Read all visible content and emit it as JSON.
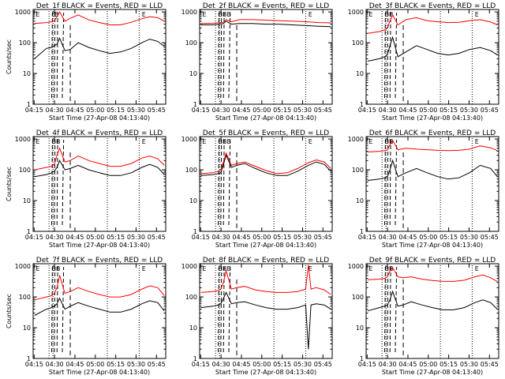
{
  "figure": {
    "background": "#ffffff",
    "events_color": "#000000",
    "lld_color": "#ff0000"
  },
  "chart_data": [
    {
      "type": "line",
      "title": "Det_1f BLACK = Events, RED = LLD",
      "xlabel": "Start Time (27-Apr-08 04:13:40)",
      "ylabel": "Counts/sec",
      "x_tick_labels": [
        "04:15",
        "04:30",
        "04:45",
        "05:00",
        "05:15",
        "05:30",
        "05:45"
      ],
      "y_tick_labels": [
        "1",
        "10",
        "100",
        "1000"
      ],
      "yscale": "log",
      "ylim": [
        1,
        1200
      ],
      "xlim_minutes_after_start": [
        0,
        100
      ],
      "markers": [
        "E",
        "B",
        "B",
        "E"
      ],
      "series": [
        {
          "color": "#000000",
          "x": [
            1,
            10,
            14,
            16,
            18,
            20,
            24,
            28,
            34,
            42,
            50,
            58,
            66,
            74,
            82,
            88,
            94,
            99
          ],
          "y": [
            30,
            65,
            70,
            80,
            90,
            140,
            55,
            60,
            100,
            70,
            55,
            45,
            50,
            65,
            100,
            130,
            110,
            75
          ]
        },
        {
          "color": "#ff0000",
          "x": [
            1,
            10,
            14,
            16,
            18,
            20,
            24,
            28,
            34,
            42,
            50,
            58,
            66,
            74,
            82,
            88,
            94,
            99
          ],
          "y": [
            420,
            450,
            480,
            520,
            700,
            1000,
            500,
            620,
            800,
            550,
            450,
            380,
            380,
            460,
            600,
            700,
            650,
            500
          ]
        }
      ]
    },
    {
      "type": "line",
      "title": "Det_2f BLACK = Events, RED = LLD",
      "xlabel": "Start Time (27-Apr-08 04:13:40)",
      "ylabel": "",
      "x_tick_labels": [
        "04:15",
        "04:30",
        "04:45",
        "05:00",
        "05:15",
        "05:30",
        "05:45"
      ],
      "y_tick_labels": [
        "1",
        "10",
        "100",
        "1000"
      ],
      "yscale": "log",
      "ylim": [
        1,
        1200
      ],
      "xlim_minutes_after_start": [
        0,
        100
      ],
      "markers": [
        "E",
        "BBB",
        "E"
      ],
      "series": [
        {
          "color": "#000000",
          "x": [
            1,
            10,
            18,
            20,
            24,
            30,
            40,
            50,
            60,
            70,
            80,
            90,
            99
          ],
          "y": [
            380,
            380,
            420,
            500,
            400,
            420,
            420,
            400,
            400,
            380,
            360,
            340,
            330
          ]
        },
        {
          "color": "#ff0000",
          "x": [
            1,
            10,
            18,
            20,
            24,
            30,
            40,
            50,
            60,
            70,
            80,
            90,
            99
          ],
          "y": [
            420,
            430,
            460,
            560,
            480,
            560,
            560,
            540,
            520,
            500,
            480,
            450,
            440
          ]
        }
      ]
    },
    {
      "type": "line",
      "title": "Det_3f BLACK = Events, RED = LLD",
      "xlabel": "Start Time (27-Apr-08 04:13:40)",
      "ylabel": "",
      "x_tick_labels": [
        "04:15",
        "04:30",
        "04:45",
        "05:00",
        "05:15",
        "05:30",
        "05:45"
      ],
      "y_tick_labels": [
        "1",
        "10",
        "100",
        "1000"
      ],
      "yscale": "log",
      "ylim": [
        1,
        1200
      ],
      "xlim_minutes_after_start": [
        0,
        100
      ],
      "markers": [
        "E",
        "BB",
        "E"
      ],
      "series": [
        {
          "color": "#000000",
          "x": [
            1,
            10,
            14,
            16,
            18,
            20,
            24,
            30,
            38,
            46,
            54,
            62,
            70,
            78,
            86,
            94,
            99
          ],
          "y": [
            25,
            30,
            35,
            40,
            80,
            150,
            35,
            50,
            80,
            60,
            45,
            40,
            45,
            60,
            70,
            55,
            40
          ]
        },
        {
          "color": "#ff0000",
          "x": [
            1,
            10,
            14,
            16,
            18,
            20,
            24,
            30,
            38,
            46,
            54,
            62,
            70,
            78,
            86,
            94,
            99
          ],
          "y": [
            200,
            230,
            260,
            300,
            500,
            800,
            380,
            560,
            650,
            520,
            480,
            450,
            460,
            520,
            560,
            470,
            380
          ]
        }
      ]
    },
    {
      "type": "line",
      "title": "Det_4f BLACK = Events, RED = LLD",
      "xlabel": "Start Time (27-Apr-08 04:13:40)",
      "ylabel": "Counts/sec",
      "x_tick_labels": [
        "04:15",
        "04:30",
        "04:45",
        "05:00",
        "05:15",
        "05:30",
        "05:45"
      ],
      "y_tick_labels": [
        "1",
        "10",
        "100",
        "1000"
      ],
      "yscale": "log",
      "ylim": [
        1,
        1200
      ],
      "xlim_minutes_after_start": [
        0,
        100
      ],
      "markers": [
        "E",
        "BB",
        "E"
      ],
      "series": [
        {
          "color": "#000000",
          "x": [
            1,
            10,
            14,
            16,
            18,
            20,
            24,
            28,
            34,
            42,
            50,
            58,
            66,
            74,
            82,
            88,
            94,
            99
          ],
          "y": [
            60,
            70,
            80,
            90,
            120,
            200,
            100,
            110,
            140,
            100,
            80,
            65,
            65,
            80,
            120,
            150,
            120,
            70
          ]
        },
        {
          "color": "#ff0000",
          "x": [
            1,
            10,
            14,
            16,
            18,
            20,
            24,
            28,
            34,
            42,
            50,
            58,
            66,
            74,
            82,
            88,
            94,
            99
          ],
          "y": [
            100,
            120,
            130,
            150,
            300,
            500,
            180,
            200,
            280,
            200,
            160,
            130,
            130,
            160,
            240,
            280,
            230,
            140
          ]
        }
      ]
    },
    {
      "type": "line",
      "title": "Det_5f BLACK = Events, RED = LLD",
      "xlabel": "Start Time (27-Apr-08 04:13:40)",
      "ylabel": "",
      "x_tick_labels": [
        "04:15",
        "04:30",
        "04:45",
        "05:00",
        "05:15",
        "05:30",
        "05:45"
      ],
      "y_tick_labels": [
        "1",
        "10",
        "100",
        "1000"
      ],
      "yscale": "log",
      "ylim": [
        1,
        1200
      ],
      "xlim_minutes_after_start": [
        0,
        100
      ],
      "markers": [
        "E",
        "BBB",
        "E"
      ],
      "series": [
        {
          "color": "#000000",
          "x": [
            1,
            10,
            14,
            16,
            18,
            20,
            24,
            28,
            34,
            42,
            50,
            58,
            66,
            74,
            82,
            88,
            94,
            99
          ],
          "y": [
            65,
            70,
            75,
            80,
            150,
            300,
            120,
            140,
            160,
            110,
            80,
            65,
            65,
            90,
            140,
            180,
            150,
            90
          ]
        },
        {
          "color": "#ff0000",
          "x": [
            1,
            10,
            14,
            16,
            18,
            20,
            24,
            28,
            34,
            42,
            50,
            58,
            66,
            74,
            82,
            88,
            94,
            99
          ],
          "y": [
            75,
            80,
            90,
            100,
            180,
            350,
            140,
            160,
            180,
            130,
            95,
            75,
            80,
            110,
            170,
            210,
            180,
            110
          ]
        }
      ]
    },
    {
      "type": "line",
      "title": "Det_6f BLACK = Events, RED = LLD",
      "xlabel": "Start Time (27-Apr-08 04:13:40)",
      "ylabel": "",
      "x_tick_labels": [
        "04:15",
        "04:30",
        "04:45",
        "05:00",
        "05:15",
        "05:30",
        "05:45"
      ],
      "y_tick_labels": [
        "1",
        "10",
        "100",
        "1000"
      ],
      "yscale": "log",
      "ylim": [
        1,
        1200
      ],
      "xlim_minutes_after_start": [
        0,
        100
      ],
      "markers": [
        "E",
        "BB",
        "E"
      ],
      "series": [
        {
          "color": "#000000",
          "x": [
            1,
            10,
            14,
            16,
            18,
            20,
            24,
            30,
            38,
            46,
            54,
            62,
            70,
            78,
            86,
            94,
            99
          ],
          "y": [
            45,
            50,
            55,
            60,
            100,
            200,
            60,
            80,
            110,
            80,
            60,
            50,
            55,
            80,
            140,
            110,
            60
          ]
        },
        {
          "color": "#ff0000",
          "x": [
            1,
            10,
            14,
            16,
            18,
            20,
            24,
            30,
            38,
            46,
            54,
            62,
            70,
            78,
            86,
            94,
            99
          ],
          "y": [
            380,
            400,
            420,
            440,
            650,
            900,
            450,
            500,
            470,
            450,
            430,
            420,
            430,
            470,
            600,
            520,
            420
          ]
        }
      ]
    },
    {
      "type": "line",
      "title": "Det_7f BLACK = Events, RED = LLD",
      "xlabel": "Start Time (27-Apr-08 04:13:40)",
      "ylabel": "Counts/sec",
      "x_tick_labels": [
        "04:15",
        "04:30",
        "04:45",
        "05:00",
        "05:15",
        "05:30",
        "05:45"
      ],
      "y_tick_labels": [
        "1",
        "10",
        "100",
        "1000"
      ],
      "yscale": "log",
      "ylim": [
        1,
        1200
      ],
      "xlim_minutes_after_start": [
        0,
        100
      ],
      "markers": [
        "E",
        "BB",
        "E"
      ],
      "series": [
        {
          "color": "#000000",
          "x": [
            1,
            10,
            14,
            16,
            18,
            20,
            24,
            28,
            34,
            42,
            50,
            58,
            66,
            74,
            82,
            88,
            94,
            99
          ],
          "y": [
            25,
            40,
            45,
            50,
            60,
            90,
            40,
            50,
            65,
            50,
            40,
            32,
            32,
            40,
            60,
            75,
            65,
            35
          ]
        },
        {
          "color": "#ff0000",
          "x": [
            1,
            10,
            14,
            16,
            18,
            20,
            24,
            28,
            34,
            42,
            50,
            58,
            66,
            74,
            82,
            88,
            94,
            99
          ],
          "y": [
            80,
            100,
            110,
            130,
            200,
            500,
            130,
            150,
            200,
            150,
            120,
            100,
            100,
            120,
            180,
            230,
            200,
            110
          ]
        }
      ]
    },
    {
      "type": "line",
      "title": "Det_8f BLACK = Events, RED = LLD",
      "xlabel": "Start Time (27-Apr-08 04:13:40)",
      "ylabel": "",
      "x_tick_labels": [
        "04:15",
        "04:30",
        "04:45",
        "05:00",
        "05:15",
        "05:30",
        "05:45"
      ],
      "y_tick_labels": [
        "1",
        "10",
        "100",
        "1000"
      ],
      "yscale": "log",
      "ylim": [
        1,
        1200
      ],
      "xlim_minutes_after_start": [
        0,
        100
      ],
      "markers": [
        "E",
        "BBB",
        "E"
      ],
      "series": [
        {
          "color": "#000000",
          "x": [
            1,
            10,
            14,
            16,
            18,
            20,
            24,
            28,
            34,
            42,
            50,
            58,
            66,
            74,
            80,
            82,
            84,
            88,
            94,
            99
          ],
          "y": [
            45,
            50,
            55,
            60,
            90,
            140,
            60,
            65,
            70,
            55,
            45,
            40,
            40,
            45,
            55,
            2,
            55,
            60,
            55,
            40
          ]
        },
        {
          "color": "#ff0000",
          "x": [
            1,
            10,
            14,
            16,
            18,
            20,
            24,
            28,
            34,
            42,
            50,
            58,
            66,
            74,
            80,
            82,
            84,
            88,
            94,
            99
          ],
          "y": [
            140,
            150,
            160,
            180,
            300,
            700,
            180,
            200,
            220,
            170,
            150,
            140,
            140,
            150,
            180,
            1100,
            180,
            200,
            170,
            120
          ]
        }
      ]
    },
    {
      "type": "line",
      "title": "Det_9f BLACK = Events, RED = LLD",
      "xlabel": "Start Time (27-Apr-08 04:13:40)",
      "ylabel": "",
      "x_tick_labels": [
        "04:15",
        "04:30",
        "04:45",
        "05:00",
        "05:15",
        "05:30",
        "05:45"
      ],
      "y_tick_labels": [
        "1",
        "10",
        "100",
        "1000"
      ],
      "yscale": "log",
      "ylim": [
        1,
        1200
      ],
      "xlim_minutes_after_start": [
        0,
        100
      ],
      "markers": [
        "E",
        "BB",
        "E"
      ],
      "series": [
        {
          "color": "#000000",
          "x": [
            1,
            10,
            14,
            16,
            18,
            20,
            24,
            28,
            34,
            42,
            50,
            58,
            66,
            74,
            82,
            88,
            94,
            99
          ],
          "y": [
            35,
            45,
            50,
            55,
            80,
            150,
            50,
            55,
            70,
            55,
            45,
            38,
            38,
            45,
            65,
            80,
            65,
            40
          ]
        },
        {
          "color": "#ff0000",
          "x": [
            1,
            10,
            14,
            16,
            18,
            20,
            24,
            28,
            34,
            42,
            50,
            58,
            66,
            74,
            82,
            88,
            94,
            99
          ],
          "y": [
            360,
            380,
            400,
            450,
            700,
            900,
            450,
            420,
            450,
            380,
            340,
            320,
            320,
            350,
            450,
            520,
            420,
            320
          ]
        }
      ]
    }
  ]
}
